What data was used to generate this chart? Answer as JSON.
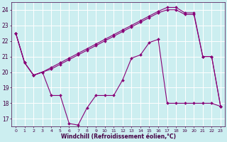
{
  "xlabel": "Windchill (Refroidissement éolien,°C)",
  "background_color": "#cceef0",
  "grid_color": "#ffffff",
  "line_color": "#880077",
  "xlim": [
    -0.5,
    23.5
  ],
  "ylim": [
    16.5,
    24.5
  ],
  "yticks": [
    17,
    18,
    19,
    20,
    21,
    22,
    23,
    24
  ],
  "xticks": [
    0,
    1,
    2,
    3,
    4,
    5,
    6,
    7,
    8,
    9,
    10,
    11,
    12,
    13,
    14,
    15,
    16,
    17,
    18,
    19,
    20,
    21,
    22,
    23
  ],
  "line1_y": [
    22.5,
    20.6,
    19.8,
    20.0,
    20.3,
    20.6,
    20.9,
    21.2,
    21.5,
    21.8,
    22.1,
    22.4,
    22.7,
    23.0,
    23.3,
    23.6,
    23.9,
    24.15,
    24.15,
    23.8,
    23.8,
    21.0,
    21.0,
    17.8
  ],
  "line2_y": [
    22.5,
    20.6,
    19.8,
    20.0,
    20.2,
    20.5,
    20.8,
    21.1,
    21.4,
    21.7,
    22.0,
    22.3,
    22.6,
    22.9,
    23.2,
    23.5,
    23.8,
    24.0,
    24.0,
    23.7,
    23.7,
    21.0,
    21.0,
    17.8
  ],
  "line3_y": [
    22.5,
    20.6,
    19.8,
    20.0,
    18.5,
    18.5,
    16.7,
    16.6,
    17.7,
    18.5,
    18.5,
    18.5,
    19.5,
    20.9,
    21.1,
    21.9,
    22.1,
    18.0,
    18.0,
    18.0,
    18.0,
    18.0,
    18.0,
    17.8
  ]
}
